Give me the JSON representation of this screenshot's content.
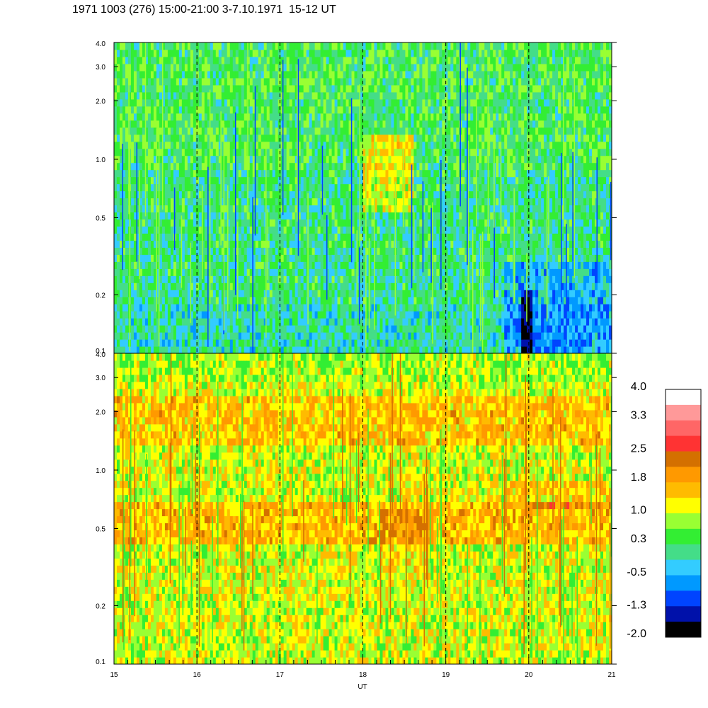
{
  "title": "1971 1003 (276) 15:00-21:00 3-7.10.1971  15-12 UT",
  "chart_data": {
    "type": "heatmap",
    "panels": [
      {
        "name": "",
        "y_scale": "log",
        "ylim": [
          0.1,
          4.0
        ],
        "yticks": [
          "0.1",
          "0.2",
          "0.5",
          "1.0",
          "2.0",
          "3.0",
          "4.0"
        ],
        "dominant_colors": "greens and cyans with some blue",
        "features": [
          "yellow patch near 18.3-18.5 UT at 0.5-0.8",
          "dark blue streak near 20.0 UT at 0.1-0.3"
        ]
      },
      {
        "name": "",
        "y_scale": "log",
        "ylim": [
          0.1,
          4.0
        ],
        "yticks": [
          "0.1",
          "0.2",
          "0.5",
          "1.0",
          "2.0",
          "3.0",
          "4.0"
        ],
        "dominant_colors": "yellows and oranges with green",
        "features": [
          "orange band near 0.5 across time",
          "orange band 2.0-3.0"
        ]
      }
    ],
    "xlim": [
      15,
      21
    ],
    "xticks": [
      "15",
      "16",
      "17",
      "18",
      "19",
      "20",
      "21"
    ],
    "xlabel": "UT",
    "vertical_dashed_lines_at": [
      16,
      17,
      18,
      19,
      20
    ],
    "colorbar": {
      "ticks": [
        "4.0",
        "3.3",
        "2.5",
        "1.8",
        "1.0",
        "0.3",
        "-0.5",
        "-1.3",
        "-2.0"
      ],
      "range": [
        -2.0,
        4.0
      ],
      "colors_top_to_bottom": [
        "#ffffff",
        "#ff9999",
        "#ff6666",
        "#ff3333",
        "#d47000",
        "#ff9900",
        "#ffbb00",
        "#ffff00",
        "#99ff33",
        "#33ee33",
        "#44dd88",
        "#33ccff",
        "#0099ff",
        "#0044ff",
        "#0011aa",
        "#000000"
      ]
    }
  }
}
